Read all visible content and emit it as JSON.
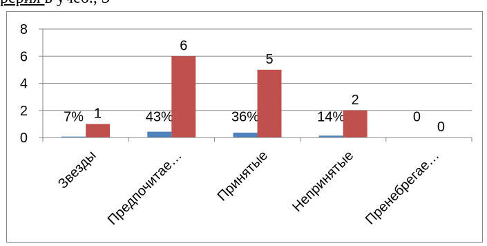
{
  "page": {
    "top_text_left": "рерия                ",
    "top_text_right": "в учеб., 3"
  },
  "chart_data": {
    "type": "bar",
    "categories": [
      "Звезды",
      "Предпочитае…",
      "Принятые",
      "Непринятые",
      "Пренебрегае…"
    ],
    "series": [
      {
        "values": [
          0.07,
          0.43,
          0.36,
          0.14,
          0
        ],
        "labels": [
          "7%",
          "43%",
          "36%",
          "14%",
          "0"
        ],
        "color": "#4f81bd"
      },
      {
        "values": [
          1,
          6,
          5,
          2,
          0
        ],
        "labels": [
          "1",
          "6",
          "5",
          "2",
          "0"
        ],
        "color": "#c0504d"
      }
    ],
    "ylim": [
      0,
      8
    ],
    "yticks": [
      0,
      2,
      4,
      6,
      8
    ],
    "grid": true,
    "gridColor": "#868686"
  }
}
